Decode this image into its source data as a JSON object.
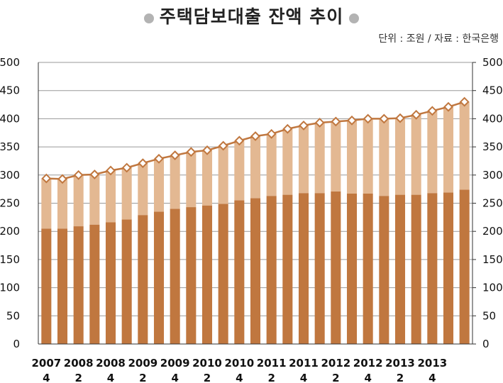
{
  "title": "주택담보대출 잔액 추이",
  "unit_note": "단위 : 조원 / 자료 : 한국은행",
  "colors": {
    "bar_bottom": "#c0773f",
    "bar_top": "#e3b892",
    "line": "#c0773f",
    "marker_fill": "#ffffff",
    "grid": "#999999"
  },
  "chart_data": {
    "type": "bar",
    "stacked": true,
    "title": "주택담보대출 잔액 추이",
    "ylim": [
      0,
      500
    ],
    "yticks": [
      0,
      50,
      100,
      150,
      200,
      250,
      300,
      350,
      400,
      450,
      500
    ],
    "secondary_yticks": [
      0,
      50,
      100,
      150,
      200,
      250,
      300,
      350,
      400,
      450,
      500
    ],
    "grid": true,
    "xtick_labels": [
      [
        "2007",
        "4"
      ],
      [
        "2008",
        "2"
      ],
      [
        "2008",
        "4"
      ],
      [
        "2009",
        "2"
      ],
      [
        "2009",
        "4"
      ],
      [
        "2010",
        "2"
      ],
      [
        "2010",
        "4"
      ],
      [
        "2011",
        "2"
      ],
      [
        "2011",
        "4"
      ],
      [
        "2012",
        "2"
      ],
      [
        "2012",
        "4"
      ],
      [
        "2013",
        "2"
      ],
      [
        "2013",
        "4"
      ]
    ],
    "n_points": 27,
    "series": [
      {
        "values": [
          205,
          205,
          209,
          212,
          216,
          221,
          229,
          235,
          240,
          243,
          246,
          249,
          255,
          259,
          263,
          265,
          268,
          268,
          271,
          267,
          267,
          263,
          265,
          265,
          268,
          269,
          274
        ]
      },
      {
        "values": [
          89,
          88,
          91,
          89,
          92,
          92,
          92,
          94,
          95,
          98,
          98,
          103,
          106,
          110,
          110,
          117,
          120,
          125,
          124,
          130,
          133,
          137,
          136,
          142,
          146,
          152,
          156
        ]
      }
    ],
    "line": {
      "values": [
        294,
        293,
        300,
        301,
        308,
        313,
        321,
        329,
        335,
        341,
        344,
        352,
        361,
        369,
        373,
        382,
        388,
        393,
        395,
        397,
        400,
        400,
        401,
        407,
        414,
        421,
        430
      ]
    }
  }
}
